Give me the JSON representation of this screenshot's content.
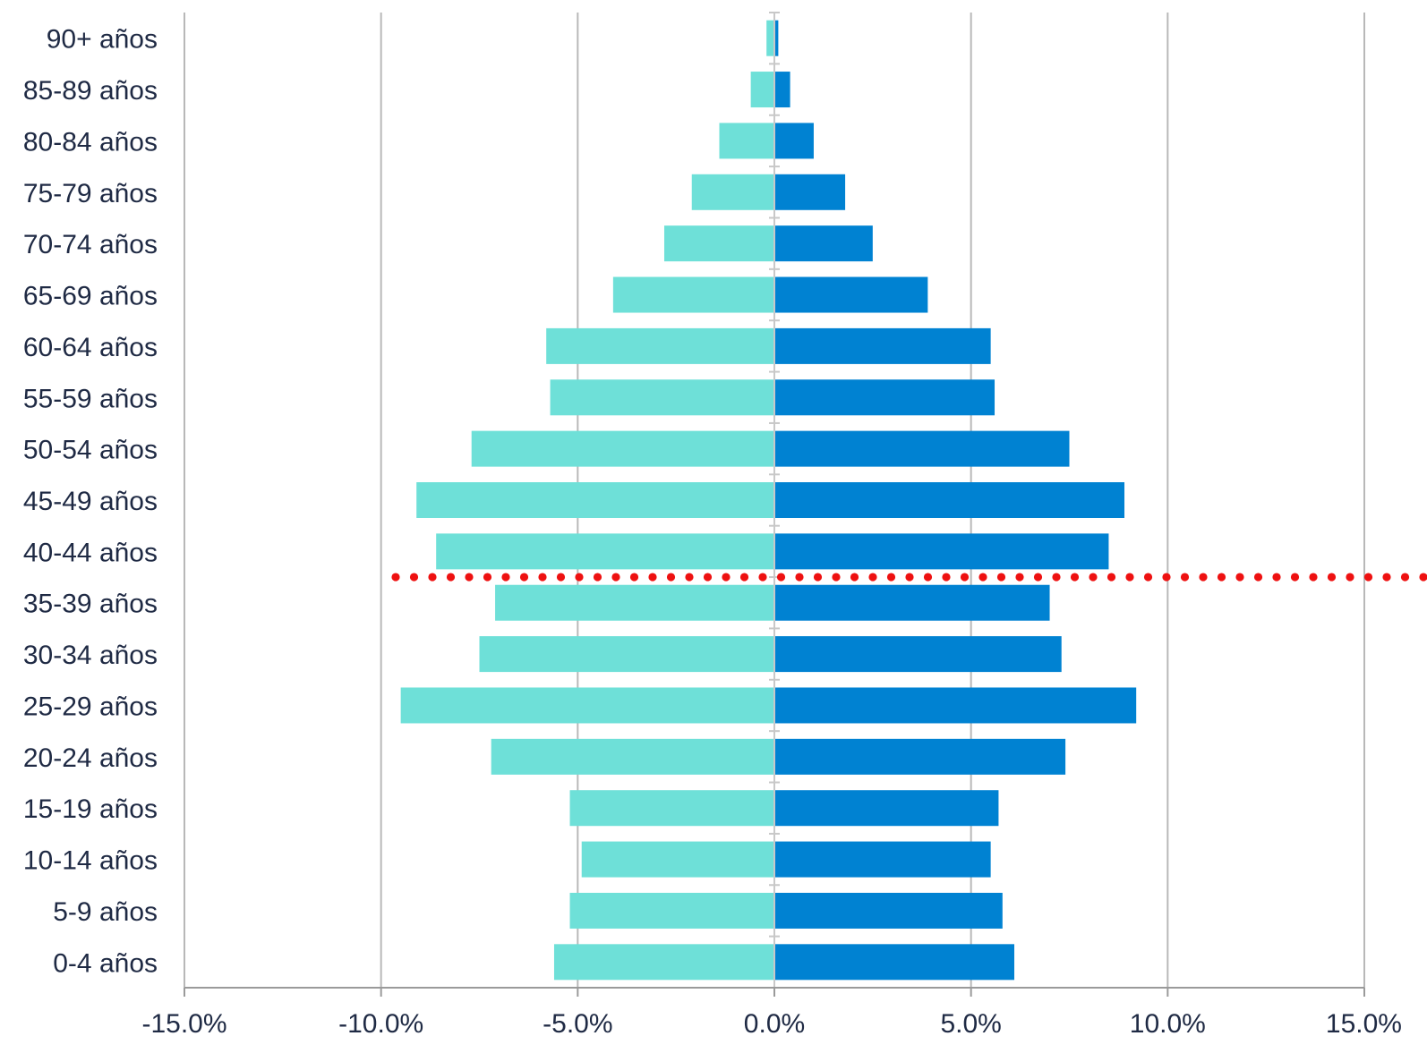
{
  "chart_data": {
    "type": "bar",
    "orientation": "horizontal",
    "categories": [
      "90+ años",
      "85-89 años",
      "80-84 años",
      "75-79 años",
      "70-74 años",
      "65-69 años",
      "60-64 años",
      "55-59 años",
      "50-54 años",
      "45-49 años",
      "40-44 años",
      "35-39 años",
      "30-34 años",
      "25-29 años",
      "20-24 años",
      "15-19 años",
      "10-14 años",
      "5-9 años",
      "0-4 años"
    ],
    "series": [
      {
        "color": "#6ee0d8",
        "values": [
          -0.2,
          -0.6,
          -1.4,
          -2.1,
          -2.8,
          -4.1,
          -5.8,
          -5.7,
          -7.7,
          -9.1,
          -8.6,
          -7.1,
          -7.5,
          -9.5,
          -7.2,
          -5.2,
          -4.9,
          -5.2,
          -5.6
        ]
      },
      {
        "color": "#0082d2",
        "values": [
          0.1,
          0.4,
          1.0,
          1.8,
          2.5,
          3.9,
          5.5,
          5.6,
          7.5,
          8.9,
          8.5,
          7.0,
          7.3,
          9.2,
          7.4,
          5.7,
          5.5,
          5.8,
          6.1
        ]
      }
    ],
    "xlim": [
      -15,
      15
    ],
    "x_ticks": [
      "-15.0%",
      "-10.0%",
      "-5.0%",
      "0.0%",
      "5.0%",
      "10.0%",
      "15.0%"
    ],
    "x_tick_values": [
      -15,
      -10,
      -5,
      0,
      5,
      10,
      15
    ],
    "grid": "vertical",
    "annotation": {
      "type": "dotted-line",
      "color": "#ee1111",
      "between": [
        "40-44 años",
        "35-39 años"
      ]
    }
  }
}
